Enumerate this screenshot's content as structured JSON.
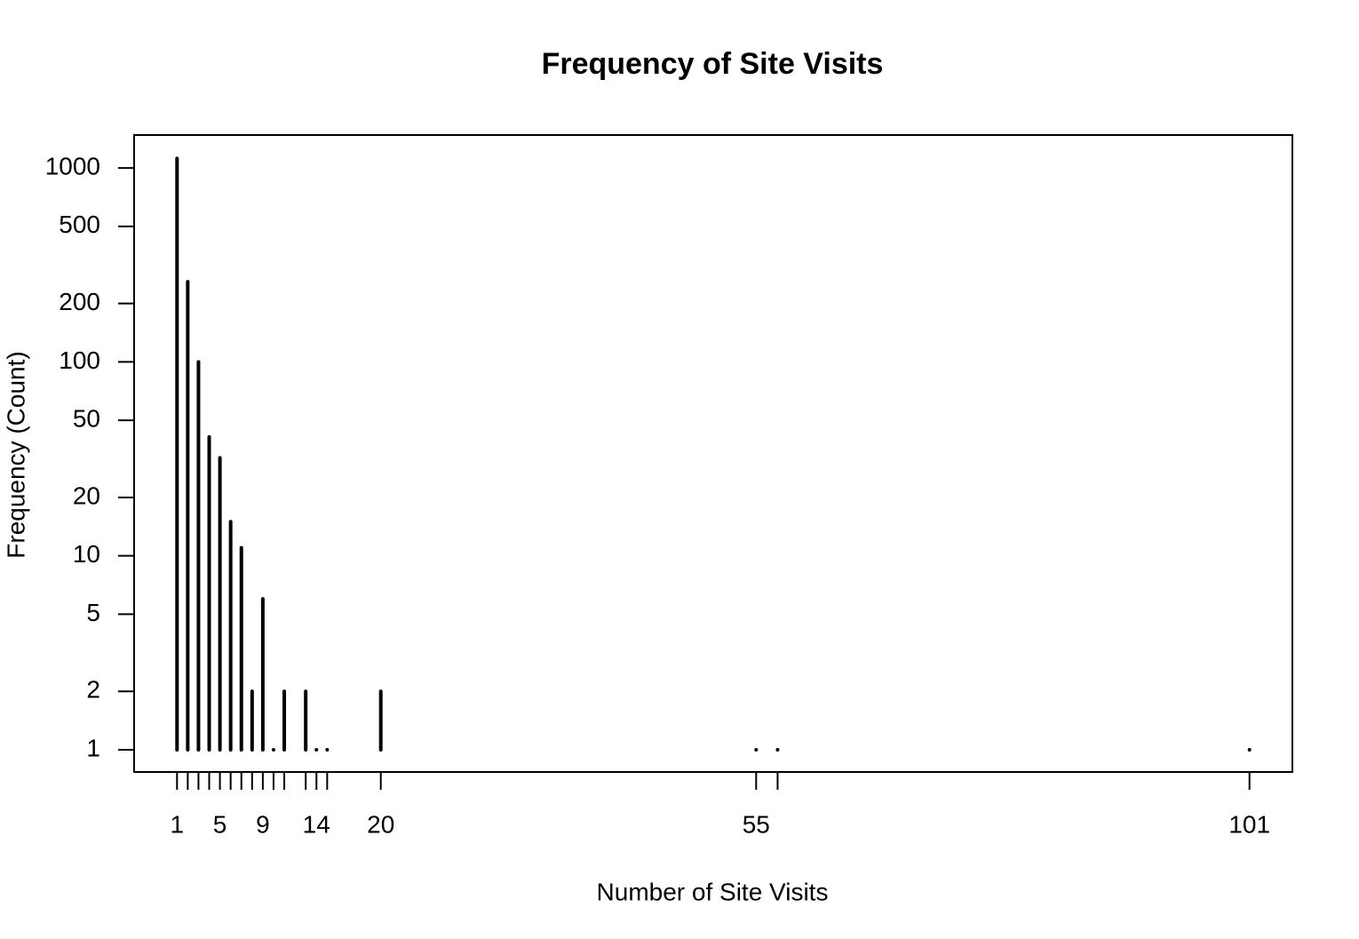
{
  "chart_data": {
    "type": "stem",
    "title": "Frequency of Site Visits",
    "x_label": "Number of Site Visits",
    "y_label": "Frequency (Count)",
    "x": [
      1,
      2,
      3,
      4,
      5,
      6,
      7,
      8,
      9,
      10,
      11,
      13,
      14,
      15,
      20,
      55,
      57,
      101
    ],
    "values": [
      1120,
      259,
      100,
      41,
      32,
      15,
      11,
      2,
      6,
      1,
      2,
      2,
      1,
      1,
      2,
      1,
      1,
      1
    ],
    "color": "#000000",
    "log_y": true,
    "xlim": [
      -3,
      105
    ],
    "ylim": [
      0.768,
      1479
    ],
    "xticks": [
      1,
      {
        "value": 2,
        "label": null
      },
      {
        "value": 3,
        "label": null
      },
      {
        "value": 4,
        "label": null
      },
      5,
      {
        "value": 6,
        "label": null
      },
      {
        "value": 7,
        "label": null
      },
      {
        "value": 8,
        "label": null
      },
      9,
      {
        "value": 10,
        "label": null
      },
      {
        "value": 11,
        "label": null
      },
      {
        "value": 13,
        "label": null
      },
      14,
      {
        "value": 15,
        "label": null
      },
      20,
      55,
      {
        "value": 57,
        "label": null
      },
      101
    ],
    "yticks": [
      1,
      2,
      5,
      10,
      20,
      50,
      100,
      200,
      500,
      1000
    ]
  }
}
